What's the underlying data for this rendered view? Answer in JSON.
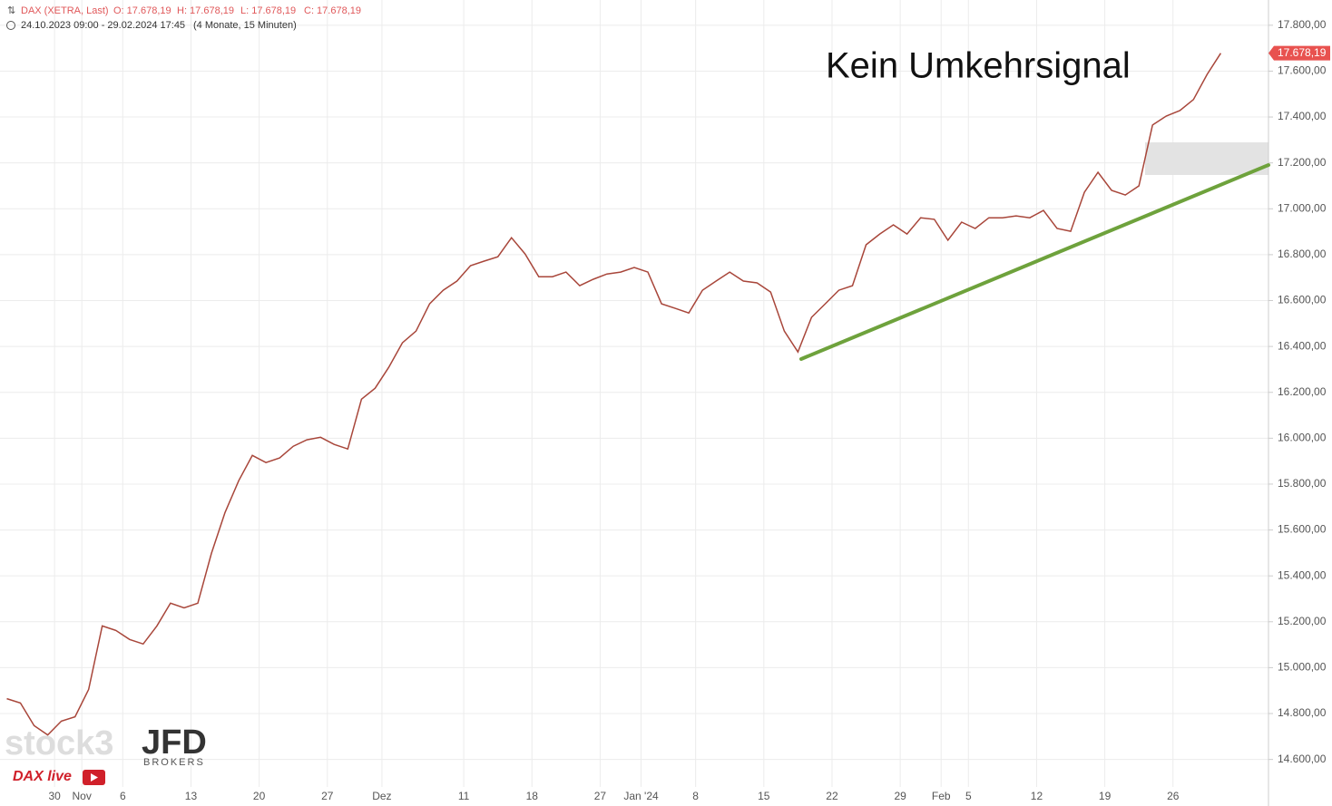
{
  "chart_data": {
    "type": "line",
    "title": "DAX (XETRA, Last)",
    "ohlc_labels": [
      "O: 17.678,19",
      "H: 17.678,19",
      "L: 17.678,19",
      "C: 17.678,19"
    ],
    "subtitle": "24.10.2023 09:00 - 29.02.2024 17:45",
    "interval": "(4 Monate, 15 Minuten)",
    "annotation": "Kein Umkehrsignal",
    "watermarks": [
      "stock3",
      "JFD",
      "BROKERS",
      "DAX live"
    ],
    "categories": [
      null,
      null,
      null,
      null,
      "30",
      null,
      "Nov",
      null,
      null,
      "6",
      null,
      null,
      null,
      null,
      "13",
      null,
      null,
      null,
      null,
      "20",
      null,
      null,
      null,
      null,
      "27",
      null,
      null,
      null,
      "Dez",
      null,
      null,
      null,
      null,
      null,
      "11",
      null,
      null,
      null,
      null,
      "18",
      null,
      null,
      null,
      null,
      "27",
      null,
      null,
      "Jan '24",
      null,
      null,
      null,
      "8",
      null,
      null,
      null,
      null,
      "15",
      null,
      null,
      null,
      null,
      "22",
      null,
      null,
      null,
      null,
      "29",
      null,
      null,
      "Feb",
      null,
      "5",
      null,
      null,
      null,
      null,
      "12",
      null,
      null,
      null,
      null,
      "19",
      null,
      null,
      null,
      null,
      "26",
      null,
      null,
      null,
      null,
      null,
      null
    ],
    "values": [
      14865,
      14846,
      14747,
      14707,
      14767,
      14786,
      14905,
      15182,
      15162,
      15123,
      15103,
      15182,
      15281,
      15261,
      15281,
      15498,
      15676,
      15815,
      15925,
      15894,
      15914,
      15965,
      15993,
      16004,
      15973,
      15953,
      16170,
      16218,
      16309,
      16416,
      16467,
      16586,
      16645,
      16685,
      16752,
      16772,
      16791,
      16874,
      16803,
      16704,
      16704,
      16724,
      16665,
      16693,
      16716,
      16724,
      16744,
      16724,
      16586,
      16566,
      16546,
      16645,
      16685,
      16724,
      16685,
      16677,
      16637,
      16467,
      16376,
      16527,
      16586,
      16645,
      16665,
      16843,
      16890,
      16930,
      16890,
      16961,
      16954,
      16863,
      16942,
      16914,
      16961,
      16961,
      16969,
      16961,
      16993,
      16914,
      16902,
      17072,
      17159,
      17080,
      17060,
      17100,
      17365,
      17404,
      17428,
      17476,
      17586,
      17678.19,
      null,
      null,
      null
    ],
    "color": "#a8463a",
    "ylim": [
      14480,
      17910
    ],
    "yticks": [
      {
        "value": 14600,
        "label": "14.600,00"
      },
      {
        "value": 14800,
        "label": "14.800,00"
      },
      {
        "value": 15000,
        "label": "15.000,00"
      },
      {
        "value": 15200,
        "label": "15.200,00"
      },
      {
        "value": 15400,
        "label": "15.400,00"
      },
      {
        "value": 15600,
        "label": "15.600,00"
      },
      {
        "value": 15800,
        "label": "15.800,00"
      },
      {
        "value": 16000,
        "label": "16.000,00"
      },
      {
        "value": 16200,
        "label": "16.200,00"
      },
      {
        "value": 16400,
        "label": "16.400,00"
      },
      {
        "value": 16600,
        "label": "16.600,00"
      },
      {
        "value": 16800,
        "label": "16.800,00"
      },
      {
        "value": 17000,
        "label": "17.000,00"
      },
      {
        "value": 17200,
        "label": "17.200,00"
      },
      {
        "value": 17400,
        "label": "17.400,00"
      },
      {
        "value": 17600,
        "label": "17.600,00"
      },
      {
        "value": 17800,
        "label": "17.800,00"
      }
    ],
    "last_price_label": {
      "value": 17678.19,
      "label": "17.678,19"
    },
    "grid": true
  }
}
